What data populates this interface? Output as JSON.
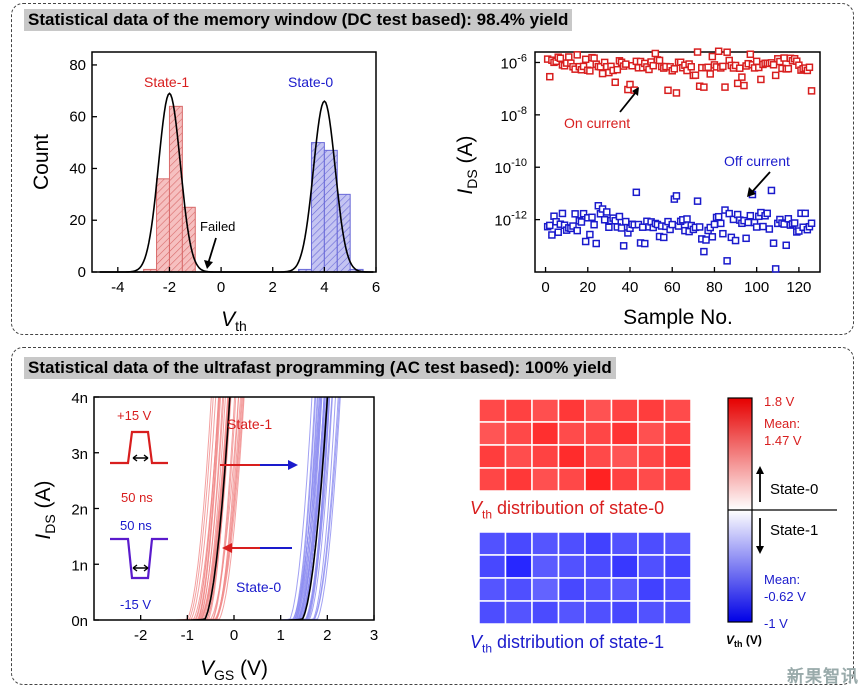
{
  "panel_top": {
    "title": "Statistical data of the memory window (DC test based): 98.4% yield"
  },
  "panel_bottom": {
    "title": "Statistical data of the ultrafast programming (AC test based): 100% yield"
  },
  "colors": {
    "red": "#d81e1e",
    "blue": "#1a1acc",
    "red_fill": "#f4b6b6",
    "blue_fill": "#b8b8ee"
  },
  "chart_data": [
    {
      "type": "bar",
      "id": "vth-histogram",
      "xlabel": "V",
      "xlabel_sub": "th",
      "ylabel": "Count",
      "xlim": [
        -5,
        6
      ],
      "ylim": [
        0,
        85
      ],
      "xticks": [
        "-4",
        "-2",
        "0",
        "2",
        "4",
        "6"
      ],
      "yticks": [
        "0",
        "20",
        "40",
        "60",
        "80"
      ],
      "series": [
        {
          "name": "State-1",
          "bin_centers": [
            -2.75,
            -2.25,
            -1.75,
            -1.25
          ],
          "values": [
            1,
            36,
            64,
            25
          ]
        },
        {
          "name": "State-0",
          "bin_centers": [
            3.25,
            3.75,
            4.25,
            4.75,
            5.25
          ],
          "values": [
            1,
            50,
            47,
            30,
            1
          ]
        }
      ],
      "fits": [
        {
          "name": "State-1",
          "mean": -2.0,
          "sigma": 0.42,
          "peak": 69
        },
        {
          "name": "State-0",
          "mean": 4.0,
          "sigma": 0.42,
          "peak": 66
        }
      ],
      "annotations": [
        {
          "text": "State-1"
        },
        {
          "text": "State-0"
        },
        {
          "text": "Failed"
        }
      ]
    },
    {
      "type": "scatter",
      "id": "ids-vs-sample",
      "xlabel": "Sample No.",
      "ylabel": "I",
      "ylabel_sub": "DS",
      "ylabel_unit": "(A)",
      "xlim": [
        -5,
        130
      ],
      "ylog_range": [
        -14,
        -5.6
      ],
      "xticks": [
        "0",
        "20",
        "40",
        "60",
        "80",
        "100",
        "120"
      ],
      "yticks": [
        {
          "base": "10",
          "exp": "-6"
        },
        {
          "base": "10",
          "exp": "-8"
        },
        {
          "base": "10",
          "exp": "-10"
        },
        {
          "base": "10",
          "exp": "-12"
        }
      ],
      "series": [
        {
          "name": "On current",
          "log_mean": -6.1,
          "log_spread": 0.35,
          "count": 126
        },
        {
          "name": "Off current",
          "log_mean": -12.2,
          "log_spread": 0.55,
          "count": 126
        }
      ],
      "annotations": [
        {
          "text": "On current"
        },
        {
          "text": "Off current"
        }
      ]
    },
    {
      "type": "line",
      "id": "ids-vs-vgs",
      "xlabel": "V",
      "xlabel_sub": "GS",
      "xlabel_unit": "(V)",
      "ylabel": "I",
      "ylabel_sub": "DS",
      "ylabel_unit": "(A)",
      "xlim": [
        -3,
        3
      ],
      "ylim": [
        0,
        4
      ],
      "xticks": [
        "-2",
        "-1",
        "0",
        "1",
        "2",
        "3"
      ],
      "yticks": [
        "0n",
        "1n",
        "2n",
        "3n",
        "4n"
      ],
      "series": [
        {
          "name": "State-1",
          "vth_mean": -0.62,
          "vth_range": [
            -1.0,
            -0.3
          ],
          "curves": 30
        },
        {
          "name": "State-0",
          "vth_mean": 1.47,
          "vth_range": [
            1.2,
            1.8
          ],
          "curves": 30
        }
      ],
      "annotations": [
        {
          "text": "+15 V"
        },
        {
          "text": "50 ns"
        },
        {
          "text": "50 ns"
        },
        {
          "text": "-15 V"
        },
        {
          "text": "State-1"
        },
        {
          "text": "State-0"
        }
      ]
    },
    {
      "type": "heatmap",
      "id": "vth-map-state0",
      "caption_v": "V",
      "caption_sub": "th",
      "caption_rest": " distribution of state-0",
      "rows": 4,
      "cols": 8,
      "values": [
        [
          1.45,
          1.5,
          1.42,
          1.55,
          1.4,
          1.48,
          1.52,
          1.44
        ],
        [
          1.38,
          1.46,
          1.6,
          1.44,
          1.47,
          1.58,
          1.41,
          1.5
        ],
        [
          1.52,
          1.43,
          1.49,
          1.62,
          1.45,
          1.39,
          1.47,
          1.55
        ],
        [
          1.47,
          1.55,
          1.41,
          1.46,
          1.68,
          1.5,
          1.44,
          1.48
        ]
      ]
    },
    {
      "type": "heatmap",
      "id": "vth-map-state1",
      "caption_v": "V",
      "caption_sub": "th",
      "caption_rest": " distribution of state-1",
      "rows": 4,
      "cols": 8,
      "values": [
        [
          -0.6,
          -0.65,
          -0.58,
          -0.62,
          -0.7,
          -0.6,
          -0.63,
          -0.59
        ],
        [
          -0.66,
          -0.85,
          -0.55,
          -0.6,
          -0.64,
          -0.75,
          -0.61,
          -0.68
        ],
        [
          -0.58,
          -0.62,
          -0.5,
          -0.66,
          -0.6,
          -0.57,
          -0.7,
          -0.63
        ],
        [
          -0.63,
          -0.59,
          -0.64,
          -0.58,
          -0.61,
          -0.66,
          -0.6,
          -0.62
        ]
      ]
    }
  ],
  "colorbar": {
    "max_label": "1.8 V",
    "min_label": "-1 V",
    "max": 1.8,
    "min": -1.0,
    "mean0_title": "Mean:",
    "mean0_value": "1.47 V",
    "mean1_title": "Mean:",
    "mean1_value": "-0.62 V",
    "state0": "State-0",
    "state1": "State-1",
    "unit_v": "V",
    "unit_sub": "th",
    "unit_rest": " (V)"
  },
  "watermark": "新果智讯"
}
